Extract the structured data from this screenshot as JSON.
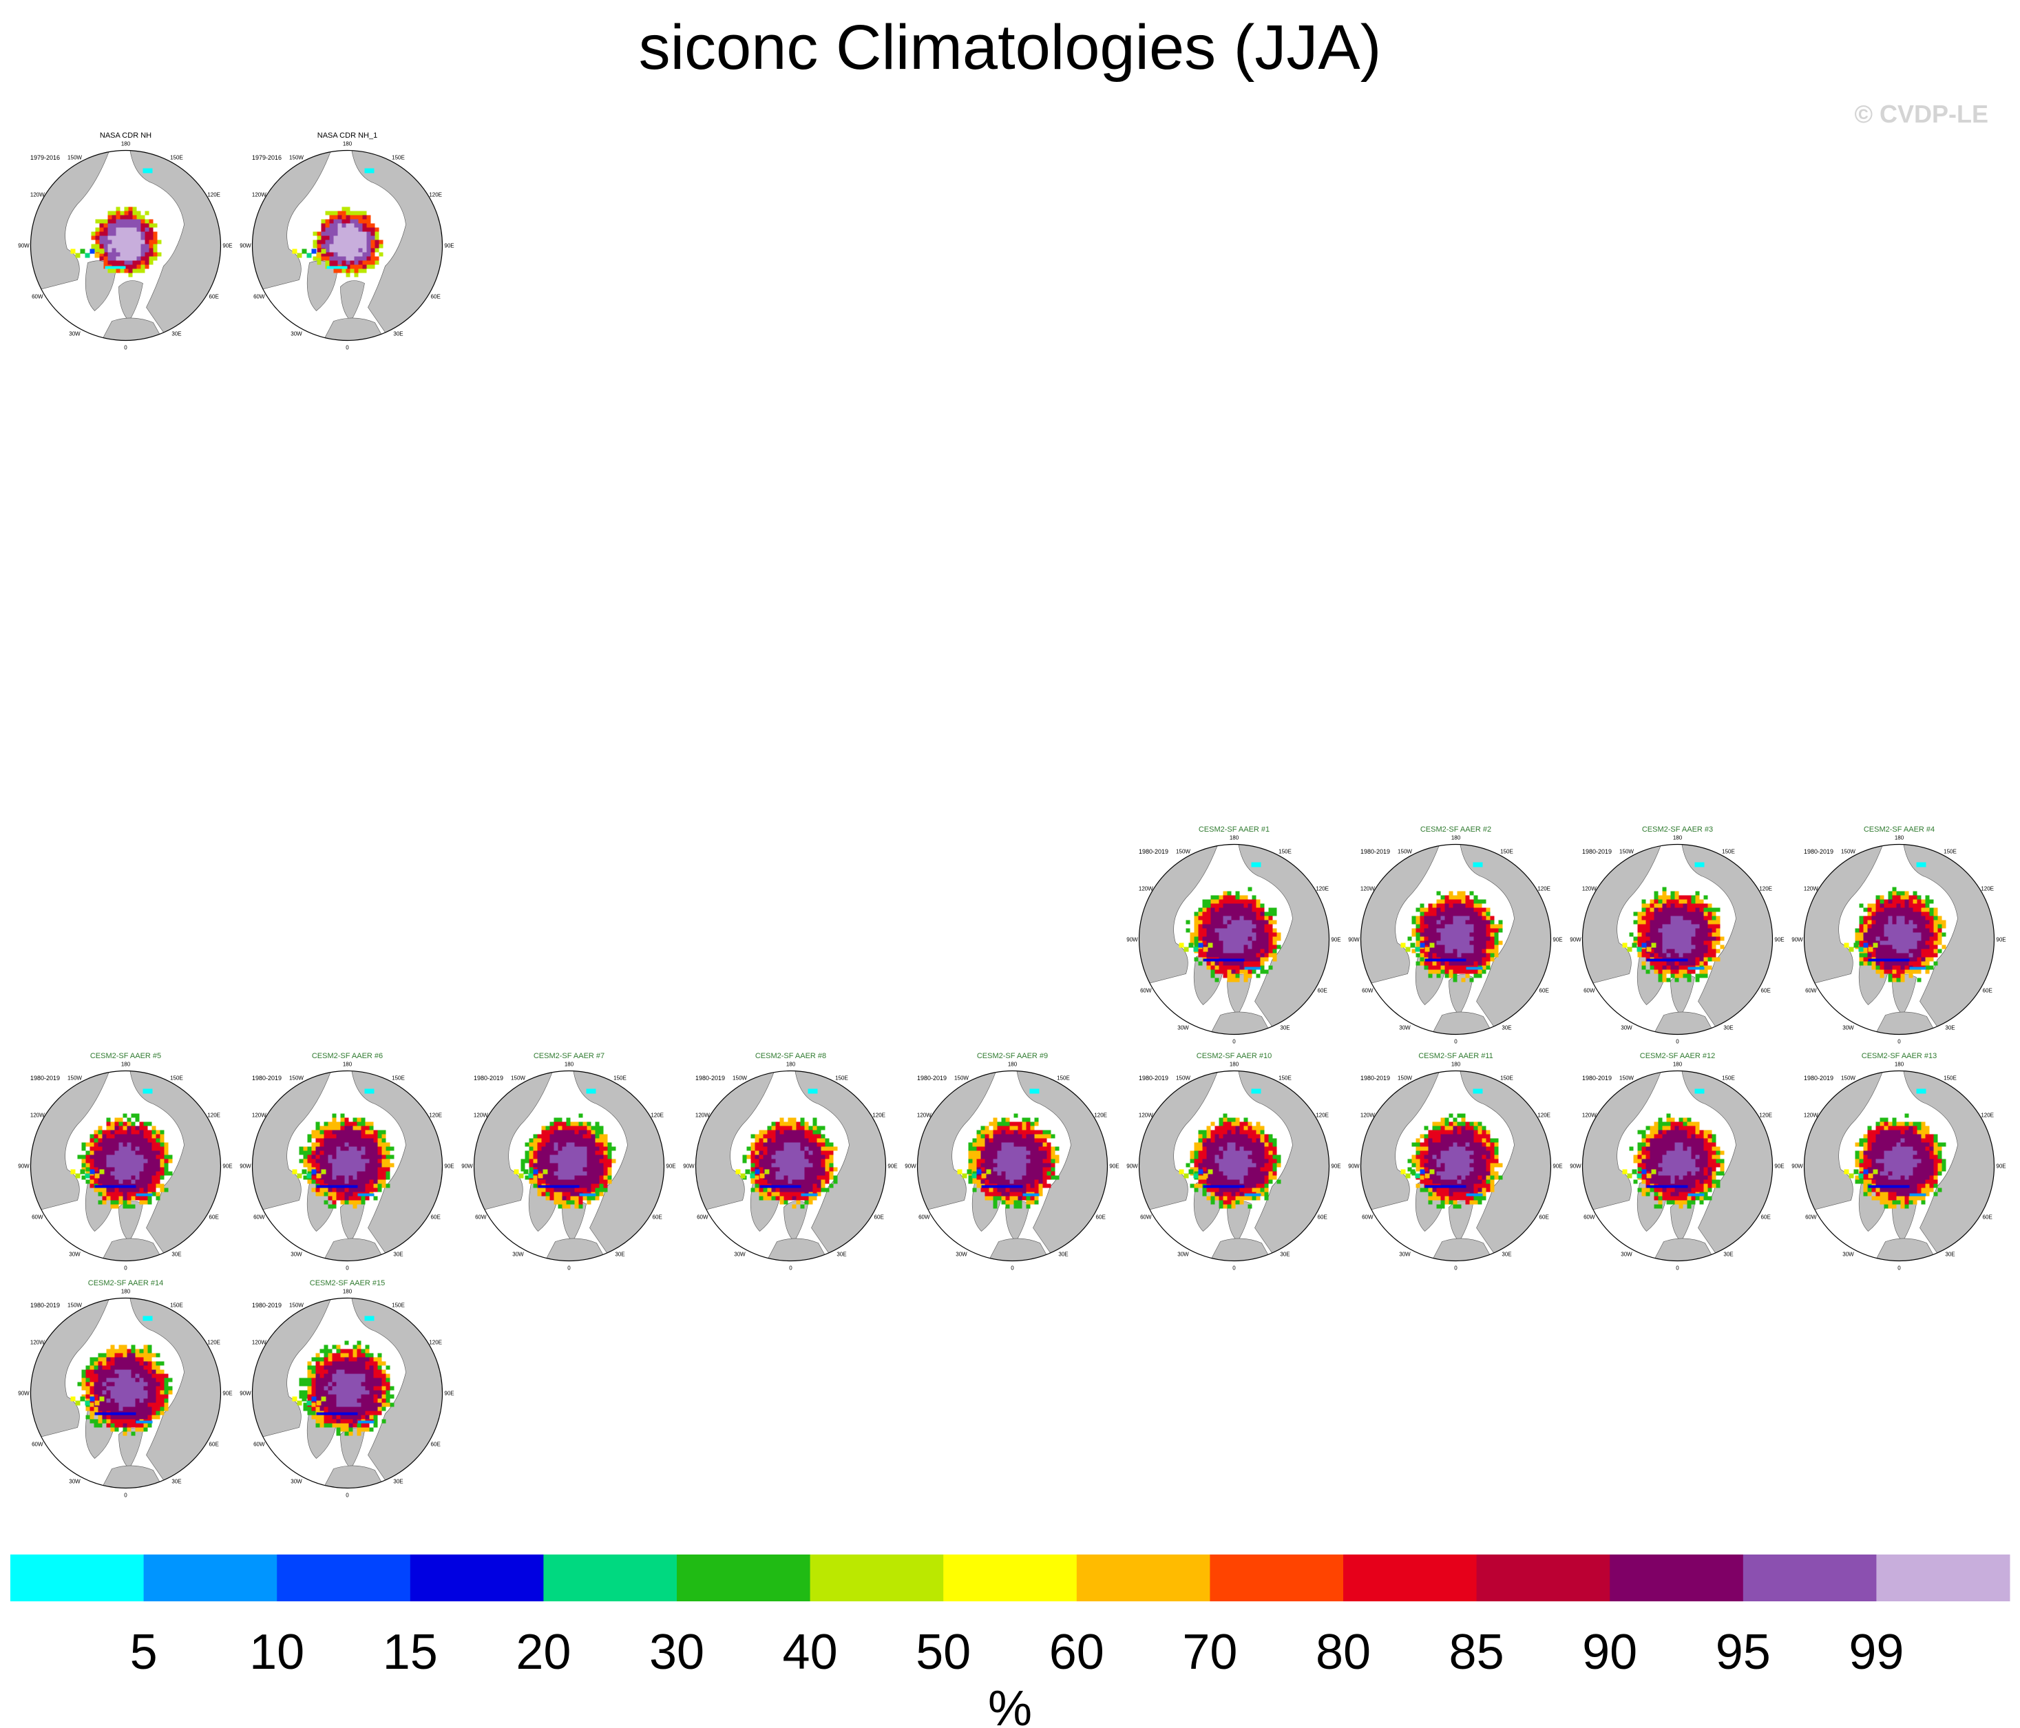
{
  "figure": {
    "title": "siconc Climatologies (JJA)",
    "credit": "© CVDP-LE"
  },
  "chart_data": {
    "type": "heatmap",
    "variable": "siconc",
    "season": "JJA",
    "projection": "north polar stereographic",
    "longitude_labels": [
      "180",
      "150E",
      "120E",
      "90E",
      "60E",
      "30E",
      "0",
      "30W",
      "60W",
      "90W",
      "120W",
      "150W"
    ],
    "panels": [
      {
        "name": "NASA CDR NH",
        "period": "1979-2016",
        "kind": "obs",
        "row": 0,
        "col": 0
      },
      {
        "name": "NASA CDR NH_1",
        "period": "1979-2016",
        "kind": "obs",
        "row": 0,
        "col": 1
      },
      {
        "name": "CESM2-SF AAER #1",
        "period": "1980-2019",
        "kind": "model",
        "row": 1,
        "col": 5
      },
      {
        "name": "CESM2-SF AAER #2",
        "period": "1980-2019",
        "kind": "model",
        "row": 1,
        "col": 6
      },
      {
        "name": "CESM2-SF AAER #3",
        "period": "1980-2019",
        "kind": "model",
        "row": 1,
        "col": 7
      },
      {
        "name": "CESM2-SF AAER #4",
        "period": "1980-2019",
        "kind": "model",
        "row": 1,
        "col": 8
      },
      {
        "name": "CESM2-SF AAER #5",
        "period": "1980-2019",
        "kind": "model",
        "row": 2,
        "col": 0
      },
      {
        "name": "CESM2-SF AAER #6",
        "period": "1980-2019",
        "kind": "model",
        "row": 2,
        "col": 1
      },
      {
        "name": "CESM2-SF AAER #7",
        "period": "1980-2019",
        "kind": "model",
        "row": 2,
        "col": 2
      },
      {
        "name": "CESM2-SF AAER #8",
        "period": "1980-2019",
        "kind": "model",
        "row": 2,
        "col": 3
      },
      {
        "name": "CESM2-SF AAER #9",
        "period": "1980-2019",
        "kind": "model",
        "row": 2,
        "col": 4
      },
      {
        "name": "CESM2-SF AAER #10",
        "period": "1980-2019",
        "kind": "model",
        "row": 2,
        "col": 5
      },
      {
        "name": "CESM2-SF AAER #11",
        "period": "1980-2019",
        "kind": "model",
        "row": 2,
        "col": 6
      },
      {
        "name": "CESM2-SF AAER #12",
        "period": "1980-2019",
        "kind": "model",
        "row": 2,
        "col": 7
      },
      {
        "name": "CESM2-SF AAER #13",
        "period": "1980-2019",
        "kind": "model",
        "row": 2,
        "col": 8
      },
      {
        "name": "CESM2-SF AAER #14",
        "period": "1980-2019",
        "kind": "model",
        "row": 3,
        "col": 0
      },
      {
        "name": "CESM2-SF AAER #15",
        "period": "1980-2019",
        "kind": "model",
        "row": 3,
        "col": 1
      }
    ],
    "colorbar": {
      "unit": "%",
      "levels": [
        "5",
        "10",
        "15",
        "20",
        "30",
        "40",
        "50",
        "60",
        "70",
        "80",
        "85",
        "90",
        "95",
        "99"
      ],
      "colors": [
        "#00ffff",
        "#0095ff",
        "#0044ff",
        "#0000e1",
        "#00d980",
        "#20bb14",
        "#bbe800",
        "#ffff00",
        "#ffbb00",
        "#ff4400",
        "#e6001a",
        "#bb0033",
        "#7f0066",
        "#8b50b0",
        "#c8aedc"
      ]
    },
    "map_colors": {
      "land": "#bfbfbf",
      "ocean": "#ffffff",
      "outline": "#000000"
    }
  }
}
